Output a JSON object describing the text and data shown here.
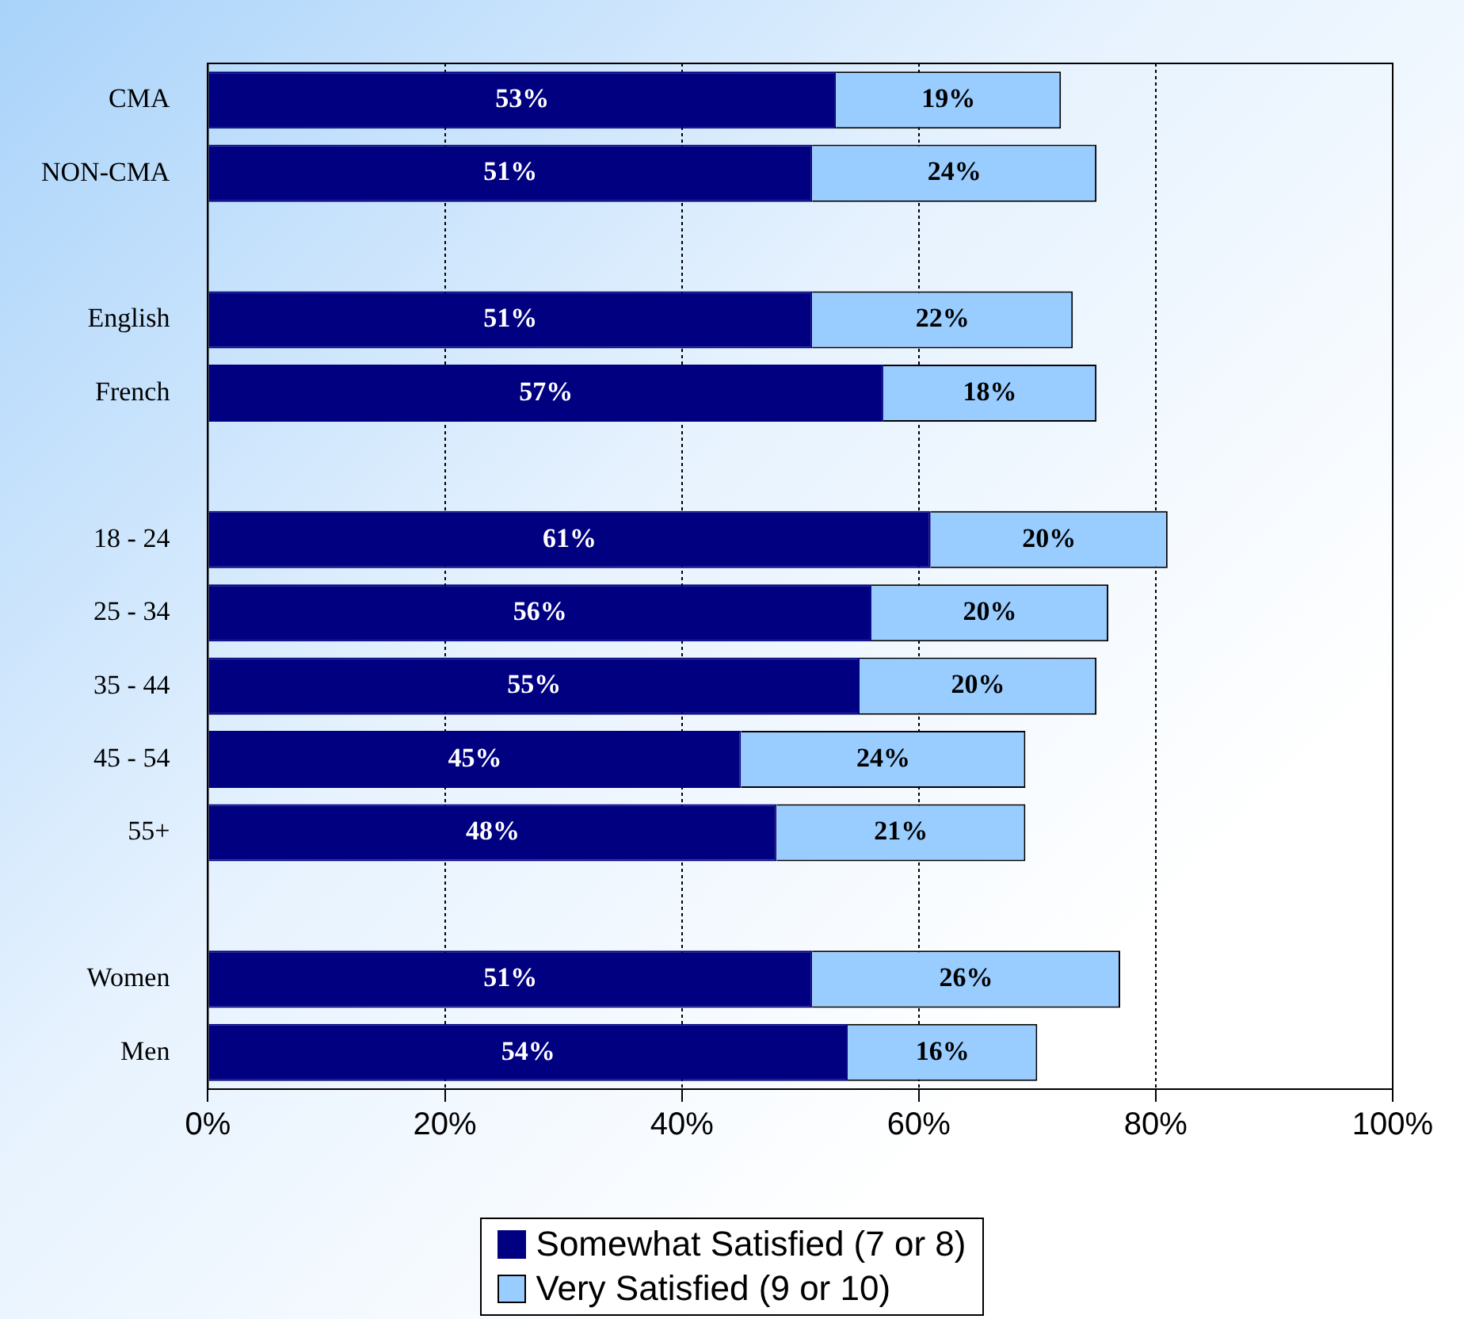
{
  "chart_data": {
    "type": "bar",
    "orientation": "horizontal",
    "stacked": true,
    "categories": [
      "CMA",
      "NON-CMA",
      null,
      "English",
      "French",
      null,
      "18 - 24",
      "25 - 34",
      "35 - 44",
      "45 - 54",
      "55+",
      null,
      "Women",
      "Men"
    ],
    "series": [
      {
        "name": "Somewhat Satisfied (7 or 8)",
        "color": "#000080",
        "values": [
          53,
          51,
          null,
          51,
          57,
          null,
          61,
          56,
          55,
          45,
          48,
          null,
          51,
          54
        ],
        "value_labels": [
          "53%",
          "51%",
          null,
          "51%",
          "57%",
          null,
          "61%",
          "56%",
          "55%",
          "45%",
          "48%",
          null,
          "51%",
          "54%"
        ]
      },
      {
        "name": "Very Satisfied (9 or 10)",
        "color": "#99ccff",
        "values": [
          19,
          24,
          null,
          22,
          18,
          null,
          20,
          20,
          20,
          24,
          21,
          null,
          26,
          16
        ],
        "value_labels": [
          "19%",
          "24%",
          null,
          "22%",
          "18%",
          null,
          "20%",
          "20%",
          "20%",
          "24%",
          "21%",
          null,
          "26%",
          "16%"
        ]
      }
    ],
    "xlim": [
      0,
      100
    ],
    "xticks": [
      {
        "value": 0,
        "label": "0%"
      },
      {
        "value": 20,
        "label": "20%"
      },
      {
        "value": 40,
        "label": "40%"
      },
      {
        "value": 60,
        "label": "60%"
      },
      {
        "value": 80,
        "label": "80%"
      },
      {
        "value": 100,
        "label": "100%"
      }
    ],
    "grid": "x",
    "legend": "bottom"
  }
}
